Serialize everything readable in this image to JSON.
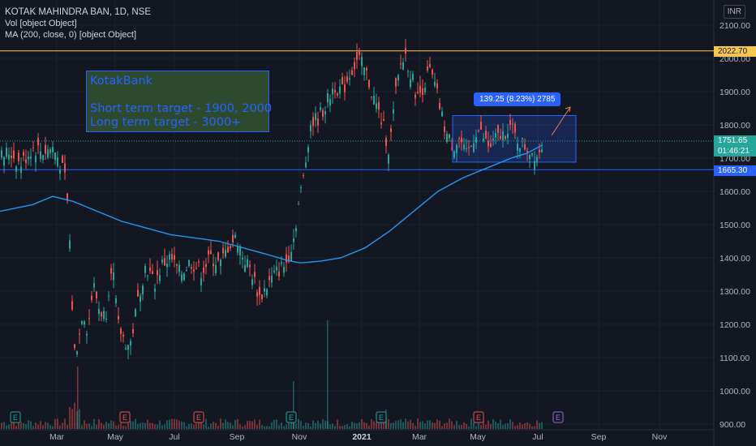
{
  "header": {
    "title": "KOTAK MAHINDRA BAN, 1D, NSE",
    "vol": "Vol [object Object]",
    "ma": "MA (200, close, 0) [object Object]",
    "currency": "INR"
  },
  "note": {
    "line1": "KotakBank",
    "line2": "Short term target - 1900, 2000",
    "line3": "Long term target - 3000+"
  },
  "callout": "139.25 (8.23%) 2785",
  "price_badges": {
    "resistance": "2022.70",
    "last": "1751.65",
    "countdown": "01:46:21",
    "support": "1665.30"
  },
  "colors": {
    "bg": "#131722",
    "up": "#26a69a",
    "down": "#ef5350",
    "ma": "#2196f3",
    "resistance": "#f9c74f",
    "support": "#2962ff"
  },
  "chart_data": {
    "type": "candlestick",
    "yaxis_ticks": [
      "2100.00",
      "2000.00",
      "1900.00",
      "1800.00",
      "1700.00",
      "1600.00",
      "1500.00",
      "1400.00",
      "1300.00",
      "1200.00",
      "1100.00",
      "1000.00",
      "900.00"
    ],
    "xaxis_ticks": [
      "Mar",
      "May",
      "Jul",
      "Sep",
      "Nov",
      "2021",
      "Mar",
      "May",
      "Jul",
      "Sep",
      "Nov"
    ],
    "ylim": [
      890,
      2125
    ],
    "horizontal_lines": [
      {
        "value": 2022.7,
        "color": "#f9c74f"
      },
      {
        "value": 1665.3,
        "color": "#2962ff"
      }
    ],
    "price_range_box": {
      "low": 1688,
      "high": 1828,
      "label": "139.25 (8.23%) 2785"
    },
    "events": [
      "E",
      "E",
      "E",
      "E",
      "E",
      "E",
      "E"
    ],
    "close_path": [
      [
        0,
        1700
      ],
      [
        12,
        1720
      ],
      [
        25,
        1680
      ],
      [
        40,
        1730
      ],
      [
        55,
        1720
      ],
      [
        65,
        1730
      ],
      [
        72,
        1700
      ],
      [
        80,
        1640
      ],
      [
        85,
        1520
      ],
      [
        88,
        1300
      ],
      [
        92,
        1120
      ],
      [
        97,
        1150
      ],
      [
        102,
        1250
      ],
      [
        108,
        1180
      ],
      [
        115,
        1320
      ],
      [
        122,
        1250
      ],
      [
        130,
        1220
      ],
      [
        138,
        1400
      ],
      [
        145,
        1200
      ],
      [
        152,
        1160
      ],
      [
        160,
        1130
      ],
      [
        165,
        1200
      ],
      [
        172,
        1300
      ],
      [
        180,
        1380
      ],
      [
        190,
        1320
      ],
      [
        200,
        1380
      ],
      [
        210,
        1400
      ],
      [
        222,
        1350
      ],
      [
        235,
        1390
      ],
      [
        248,
        1360
      ],
      [
        260,
        1400
      ],
      [
        272,
        1380
      ],
      [
        282,
        1440
      ],
      [
        292,
        1460
      ],
      [
        300,
        1400
      ],
      [
        310,
        1360
      ],
      [
        320,
        1280
      ],
      [
        330,
        1320
      ],
      [
        342,
        1360
      ],
      [
        352,
        1380
      ],
      [
        362,
        1460
      ],
      [
        368,
        1560
      ],
      [
        375,
        1650
      ],
      [
        382,
        1800
      ],
      [
        392,
        1820
      ],
      [
        402,
        1860
      ],
      [
        412,
        1920
      ],
      [
        422,
        1900
      ],
      [
        432,
        1960
      ],
      [
        442,
        2000
      ],
      [
        452,
        1950
      ],
      [
        462,
        1870
      ],
      [
        472,
        1800
      ],
      [
        480,
        1720
      ],
      [
        487,
        1880
      ],
      [
        494,
        1980
      ],
      [
        500,
        2010
      ],
      [
        508,
        1940
      ],
      [
        515,
        1880
      ],
      [
        522,
        1920
      ],
      [
        530,
        1960
      ],
      [
        538,
        1900
      ],
      [
        545,
        1820
      ],
      [
        552,
        1760
      ],
      [
        560,
        1740
      ],
      [
        567,
        1760
      ],
      [
        574,
        1700
      ],
      [
        580,
        1730
      ],
      [
        588,
        1790
      ],
      [
        596,
        1760
      ],
      [
        604,
        1730
      ],
      [
        612,
        1760
      ],
      [
        620,
        1770
      ],
      [
        628,
        1800
      ],
      [
        636,
        1760
      ],
      [
        645,
        1740
      ],
      [
        655,
        1720
      ],
      [
        662,
        1710
      ],
      [
        669,
        1751.65
      ]
    ],
    "ma200": [
      [
        0,
        1540
      ],
      [
        40,
        1560
      ],
      [
        65,
        1585
      ],
      [
        90,
        1570
      ],
      [
        120,
        1540
      ],
      [
        150,
        1510
      ],
      [
        180,
        1490
      ],
      [
        210,
        1470
      ],
      [
        240,
        1460
      ],
      [
        270,
        1450
      ],
      [
        300,
        1430
      ],
      [
        330,
        1410
      ],
      [
        355,
        1392
      ],
      [
        370,
        1385
      ],
      [
        395,
        1390
      ],
      [
        420,
        1400
      ],
      [
        450,
        1430
      ],
      [
        480,
        1480
      ],
      [
        510,
        1540
      ],
      [
        540,
        1600
      ],
      [
        570,
        1640
      ],
      [
        600,
        1670
      ],
      [
        630,
        1700
      ],
      [
        650,
        1715
      ],
      [
        669,
        1740
      ]
    ]
  }
}
